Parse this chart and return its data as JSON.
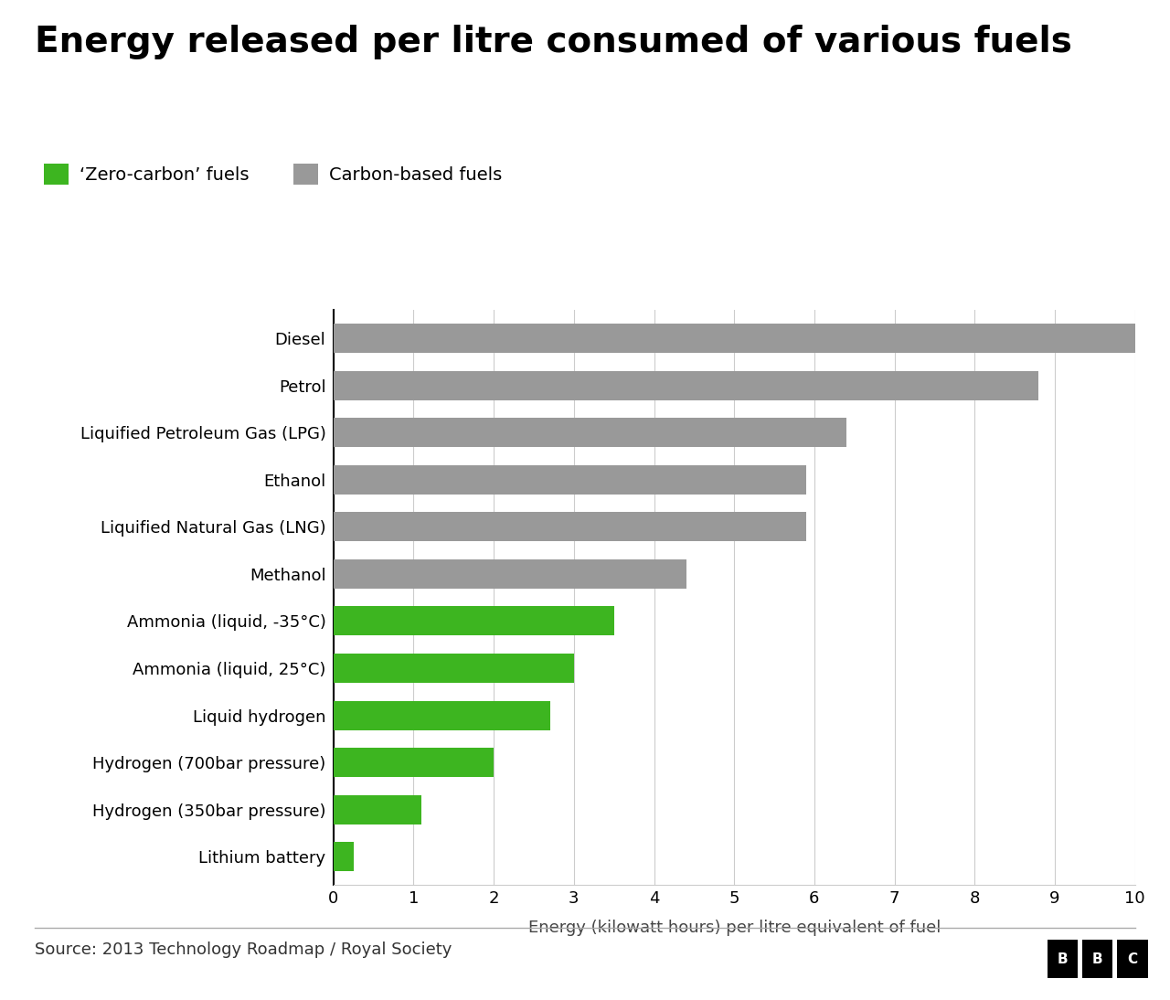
{
  "title": "Energy released per litre consumed of various fuels",
  "categories": [
    "Diesel",
    "Petrol",
    "Liquified Petroleum Gas (LPG)",
    "Ethanol",
    "Liquified Natural Gas (LNG)",
    "Methanol",
    "Ammonia (liquid, -35°C)",
    "Ammonia (liquid, 25°C)",
    "Liquid hydrogen",
    "Hydrogen (700bar pressure)",
    "Hydrogen (350bar pressure)",
    "Lithium battery"
  ],
  "values": [
    10.0,
    8.8,
    6.4,
    5.9,
    5.9,
    4.4,
    3.5,
    3.0,
    2.7,
    2.0,
    1.1,
    0.25
  ],
  "colors": [
    "#999999",
    "#999999",
    "#999999",
    "#999999",
    "#999999",
    "#999999",
    "#3db520",
    "#3db520",
    "#3db520",
    "#3db520",
    "#3db520",
    "#3db520"
  ],
  "xlabel": "Energy (kilowatt hours) per litre equivalent of fuel",
  "xlim": [
    0,
    10
  ],
  "xticks": [
    0,
    1,
    2,
    3,
    4,
    5,
    6,
    7,
    8,
    9,
    10
  ],
  "legend_green_label": "‘Zero-carbon’ fuels",
  "legend_gray_label": "Carbon-based fuels",
  "green_color": "#3db520",
  "gray_color": "#999999",
  "source_text": "Source: 2013 Technology Roadmap / Royal Society",
  "background_color": "#ffffff",
  "bar_height": 0.62,
  "title_fontsize": 28,
  "axis_label_fontsize": 13,
  "tick_fontsize": 13,
  "legend_fontsize": 14,
  "source_fontsize": 13,
  "bar_label_fontsize": 13
}
